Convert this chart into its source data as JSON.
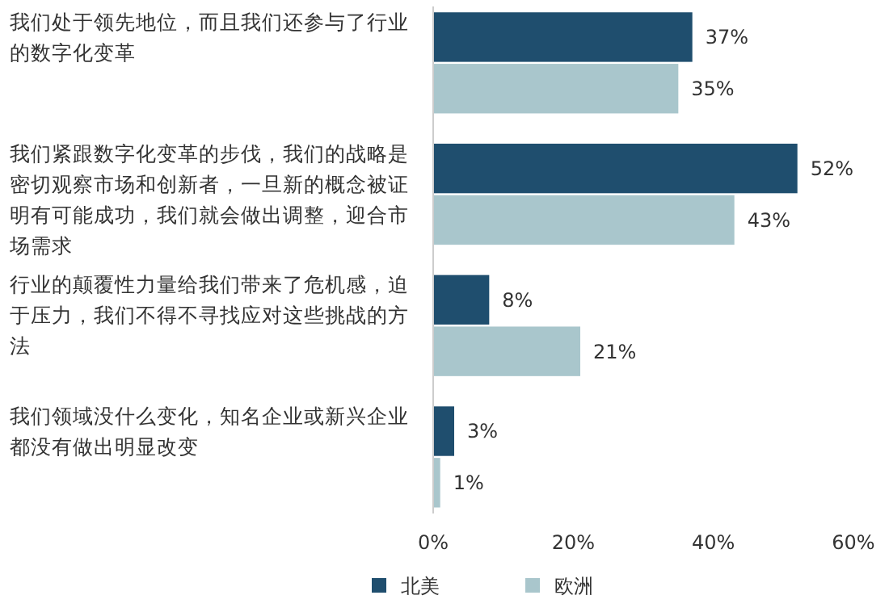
{
  "chart_data": {
    "type": "bar",
    "orientation": "horizontal",
    "categories": [
      "我们处于领先地位，而且我们还参与了行业的数字化变革",
      "我们紧跟数字化变革的步伐，我们的战略是密切观察市场和创新者，一旦新的概念被证明有可能成功，我们就会做出调整，迎合市场需求",
      "行业的颠覆性力量给我们带来了危机感，迫于压力，我们不得不寻找应对这些挑战的方法",
      "我们领域没什么变化，知名企业或新兴企业都没有做出明显改变"
    ],
    "series": [
      {
        "name": "北美",
        "color": "#1f4e6e",
        "values": [
          37,
          52,
          8,
          3
        ],
        "value_labels": [
          "37%",
          "52%",
          "8%",
          "3%"
        ]
      },
      {
        "name": "欧洲",
        "color": "#a9c6cc",
        "values": [
          35,
          43,
          21,
          1
        ],
        "value_labels": [
          "35%",
          "43%",
          "21%",
          "1%"
        ]
      }
    ],
    "xlim": [
      0,
      60
    ],
    "xticks": [
      {
        "value": 0,
        "label": "0%"
      },
      {
        "value": 20,
        "label": "20%"
      },
      {
        "value": 40,
        "label": "40%"
      },
      {
        "value": 60,
        "label": "60%"
      }
    ],
    "grid": false,
    "legend": "bottom"
  }
}
